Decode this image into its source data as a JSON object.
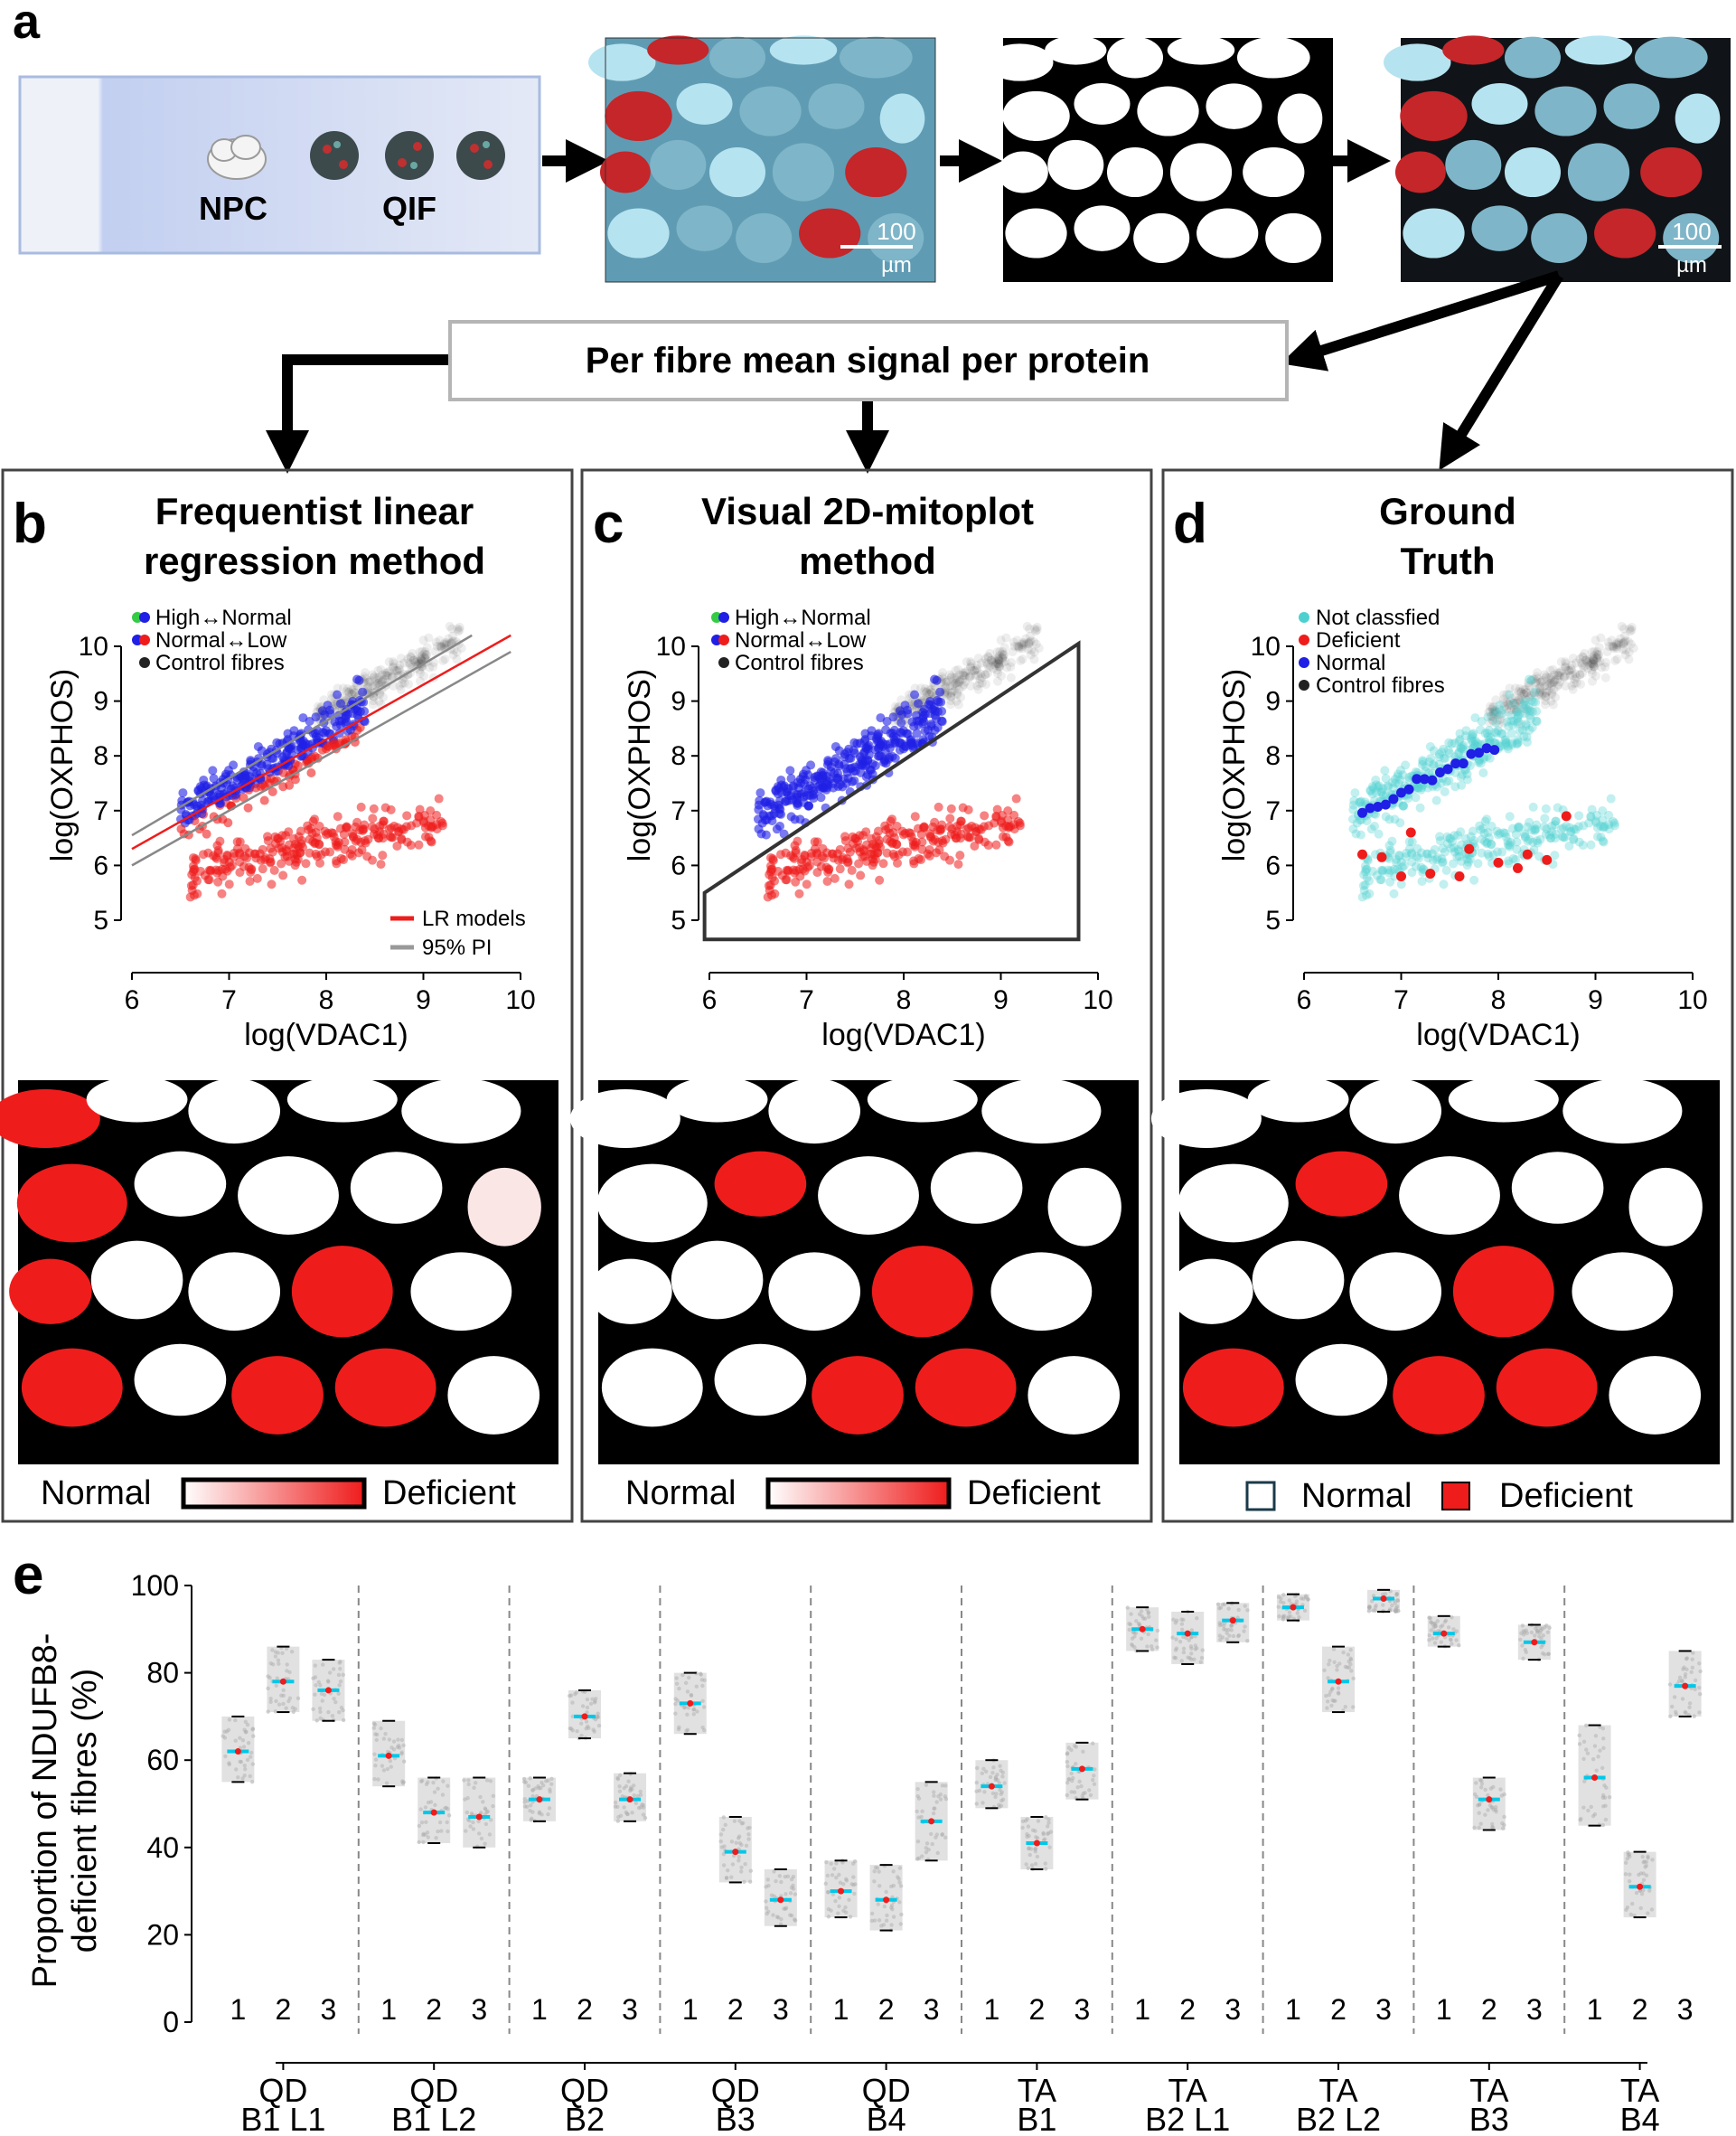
{
  "panel_labels": {
    "a": "a",
    "b": "b",
    "c": "c",
    "d": "d",
    "e": "e"
  },
  "panel_a": {
    "chip_labels": {
      "npc": "NPC",
      "qif": "QIF"
    },
    "scale_bar_1": {
      "value": "100",
      "unit": "µm"
    },
    "scale_bar_2": {
      "value": "100",
      "unit": "µm"
    },
    "per_fibre_box": "Per fibre mean signal per protein",
    "colors": {
      "cyan": "#7fc8d8",
      "red": "#d01a1a",
      "chip": "#c7d3ee"
    }
  },
  "panel_b": {
    "title_line1": "Frequentist linear",
    "title_line2": "regression method",
    "legend": [
      "High↔Normal",
      "Normal↔Low",
      "Control fibres"
    ],
    "lines_legend": [
      "LR models",
      "95% PI"
    ],
    "colorbar": {
      "left": "Normal",
      "right": "Deficient"
    }
  },
  "panel_c": {
    "title_line1": "Visual 2D-mitoplot",
    "title_line2": "method",
    "legend": [
      "High↔Normal",
      "Normal↔Low",
      "Control fibres"
    ],
    "colorbar": {
      "left": "Normal",
      "right": "Deficient"
    }
  },
  "panel_d": {
    "title_line1": "Ground",
    "title_line2": "Truth",
    "legend": [
      "Not classfied",
      "Deficient",
      "Normal",
      "Control fibres"
    ],
    "map_legend": {
      "normal": "Normal",
      "deficient": "Deficient"
    }
  },
  "scatter_axes": {
    "xlabel": "log(VDAC1)",
    "ylabel": "log(OXPHOS)",
    "xticks": [
      "6",
      "7",
      "8",
      "9",
      "10"
    ],
    "yticks": [
      "5",
      "6",
      "7",
      "8",
      "9",
      "10"
    ],
    "xlim": [
      6,
      10
    ],
    "ylim": [
      5,
      10
    ]
  },
  "colors": {
    "deficient": "#ef1c1c",
    "normal": "#1f1fe6",
    "control": "#222222",
    "not_classified": "#4fd0d0",
    "high_normal_green": "#33cc44"
  },
  "chart_data": {
    "type": "scatter",
    "ylabel_line1": "Proportion of NDUFB8-",
    "ylabel_line2": "deficient fibres (%)",
    "ylim": [
      0,
      100
    ],
    "yticks": [
      "0",
      "20",
      "40",
      "60",
      "80",
      "100"
    ],
    "groups": [
      {
        "line1": "QD",
        "line2": "B1 L1",
        "values": [
          62,
          78,
          76
        ],
        "intervals": [
          [
            55,
            70
          ],
          [
            71,
            86
          ],
          [
            69,
            83
          ]
        ]
      },
      {
        "line1": "QD",
        "line2": "B1 L2",
        "values": [
          61,
          48,
          47
        ],
        "intervals": [
          [
            54,
            69
          ],
          [
            41,
            56
          ],
          [
            40,
            56
          ]
        ]
      },
      {
        "line1": "QD",
        "line2": "B2",
        "values": [
          51,
          70,
          51
        ],
        "intervals": [
          [
            46,
            56
          ],
          [
            65,
            76
          ],
          [
            46,
            57
          ]
        ]
      },
      {
        "line1": "QD",
        "line2": "B3",
        "values": [
          73,
          39,
          28
        ],
        "intervals": [
          [
            66,
            80
          ],
          [
            32,
            47
          ],
          [
            22,
            35
          ]
        ]
      },
      {
        "line1": "QD",
        "line2": "B4",
        "values": [
          30,
          28,
          46
        ],
        "intervals": [
          [
            24,
            37
          ],
          [
            21,
            36
          ],
          [
            37,
            55
          ]
        ]
      },
      {
        "line1": "TA",
        "line2": "B1",
        "values": [
          54,
          41,
          58
        ],
        "intervals": [
          [
            49,
            60
          ],
          [
            35,
            47
          ],
          [
            51,
            64
          ]
        ]
      },
      {
        "line1": "TA",
        "line2": "B2 L1",
        "values": [
          90,
          89,
          92
        ],
        "intervals": [
          [
            85,
            95
          ],
          [
            82,
            94
          ],
          [
            87,
            96
          ]
        ]
      },
      {
        "line1": "TA",
        "line2": "B2 L2",
        "values": [
          95,
          78,
          97
        ],
        "intervals": [
          [
            92,
            98
          ],
          [
            71,
            86
          ],
          [
            94,
            99
          ]
        ]
      },
      {
        "line1": "TA",
        "line2": "B3",
        "values": [
          89,
          51,
          87
        ],
        "intervals": [
          [
            86,
            93
          ],
          [
            44,
            56
          ],
          [
            83,
            91
          ]
        ]
      },
      {
        "line1": "TA",
        "line2": "B4",
        "values": [
          56,
          31,
          77
        ],
        "intervals": [
          [
            45,
            68
          ],
          [
            24,
            39
          ],
          [
            70,
            85
          ]
        ]
      }
    ],
    "sample_ticks": [
      "1",
      "2",
      "3"
    ]
  }
}
